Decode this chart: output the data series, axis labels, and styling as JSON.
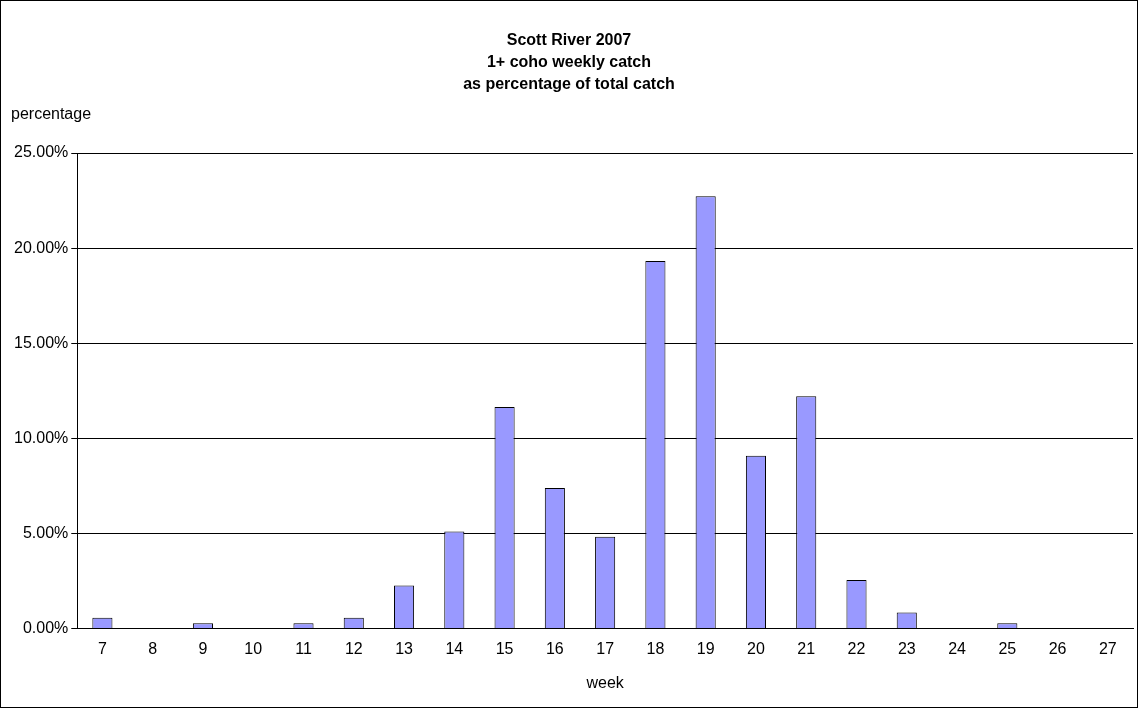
{
  "chart_data": {
    "type": "bar",
    "title": "Scott River 2007\n1+ coho weekly catch\nas percentage of total catch",
    "xlabel": "week",
    "ylabel": "percentage",
    "categories": [
      "7",
      "8",
      "9",
      "10",
      "11",
      "12",
      "13",
      "14",
      "15",
      "16",
      "17",
      "18",
      "19",
      "20",
      "21",
      "22",
      "23",
      "24",
      "25",
      "26",
      "27"
    ],
    "values": [
      0.57,
      0,
      0.28,
      0,
      0.28,
      0.57,
      2.27,
      5.11,
      11.65,
      7.39,
      4.83,
      19.32,
      22.73,
      9.09,
      12.22,
      2.56,
      0.85,
      0,
      0.28,
      0,
      0
    ],
    "color": "#9999ff",
    "ylim": [
      0,
      25
    ],
    "yticks": [
      {
        "value": 0,
        "label": "0.00%"
      },
      {
        "value": 5,
        "label": "5.00%"
      },
      {
        "value": 10,
        "label": "10.00%"
      },
      {
        "value": 15,
        "label": "15.00%"
      },
      {
        "value": 20,
        "label": "20.00%"
      },
      {
        "value": 25,
        "label": "25.00%"
      }
    ],
    "grid": "y"
  }
}
